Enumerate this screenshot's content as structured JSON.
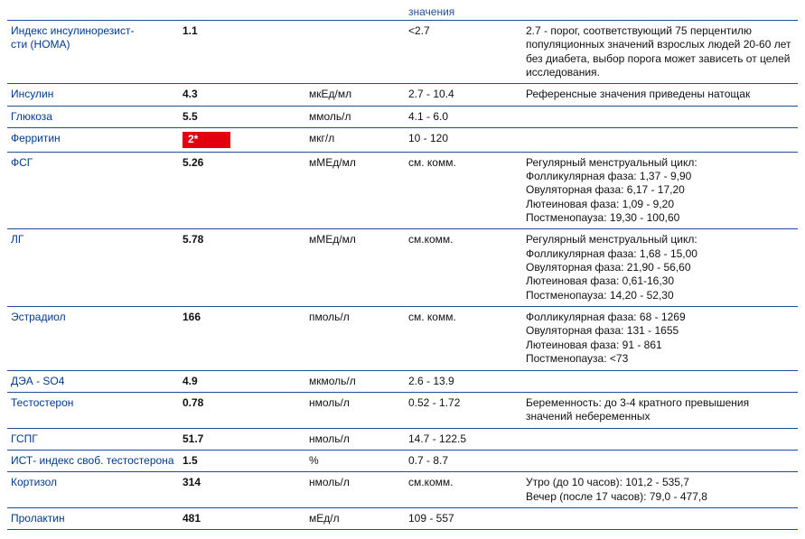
{
  "colors": {
    "border": "#1f4f98",
    "name_text": "#003a8c",
    "header_text": "#1f4f98",
    "value_text": "#111111",
    "flag_bg": "#e2000f",
    "flag_text": "#ffffff"
  },
  "header": {
    "ref_label": "значения"
  },
  "rows": [
    {
      "name": "Индекс инсулинорезист-\nсти (HOMA)",
      "value": "1.1",
      "unit": "",
      "reference": "<2.7",
      "comment": "2.7 - порог, соответствующий 75 перцентилю популяционных значений взрослых людей 20-60 лет без диабета, выбор порога может зависеть от целей исследования."
    },
    {
      "name": "Инсулин",
      "value": "4.3",
      "unit": "мкЕд/мл",
      "reference": "2.7 - 10.4",
      "comment": "Референсные значения приведены натощак"
    },
    {
      "name": "Глюкоза",
      "value": "5.5",
      "unit": "ммоль/л",
      "reference": "4.1 - 6.0",
      "comment": ""
    },
    {
      "name": "Ферритин",
      "value": "2*",
      "flag": true,
      "unit": "мкг/л",
      "reference": "10 - 120",
      "comment": ""
    },
    {
      "name": "ФСГ",
      "value": "5.26",
      "unit": "мМЕд/мл",
      "reference": "см. комм.",
      "comment": "Регулярный менструальный цикл:\nФолликулярная фаза: 1,37 - 9,90\nОвуляторная фаза: 6,17 - 17,20\nЛютеиновая фаза: 1,09 - 9,20\nПостменопауза: 19,30 - 100,60"
    },
    {
      "name": "ЛГ",
      "value": "5.78",
      "unit": "мМЕд/мл",
      "reference": "см.комм.",
      "comment": "Регулярный менструальный цикл:\nФолликулярная фаза: 1,68 - 15,00\nОвуляторная фаза: 21,90 - 56,60\nЛютеиновая фаза: 0,61-16,30\nПостменопауза: 14,20 - 52,30"
    },
    {
      "name": "Эстрадиол",
      "value": "166",
      "unit": "пмоль/л",
      "reference": "см. комм.",
      "comment": "Фолликулярная фаза: 68 - 1269\nОвуляторная фаза: 131 - 1655\nЛютеиновая фаза: 91 - 861\nПостменопауза: <73"
    },
    {
      "name": "ДЭА - SO4",
      "value": "4.9",
      "unit": "мкмоль/л",
      "reference": "2.6 - 13.9",
      "comment": ""
    },
    {
      "name": "Тестостерон",
      "value": "0.78",
      "unit": "нмоль/л",
      "reference": "0.52 - 1.72",
      "comment": "Беременность: до 3-4 кратного превышения значений небеременных"
    },
    {
      "name": "ГСПГ",
      "value": "51.7",
      "unit": "нмоль/л",
      "reference": "14.7 - 122.5",
      "comment": ""
    },
    {
      "name": "ИСТ- индекс своб. тестостерона",
      "value": "1.5",
      "unit": "%",
      "reference": "0.7 - 8.7",
      "comment": ""
    },
    {
      "name": "Кортизол",
      "value": "314",
      "unit": "нмоль/л",
      "reference": "см.комм.",
      "comment": "Утро (до 10 часов): 101,2 - 535,7\nВечер (после 17 часов): 79,0 - 477,8"
    },
    {
      "name": "Пролактин",
      "value": "481",
      "unit": "мЕд/л",
      "reference": "109 - 557",
      "comment": ""
    }
  ]
}
